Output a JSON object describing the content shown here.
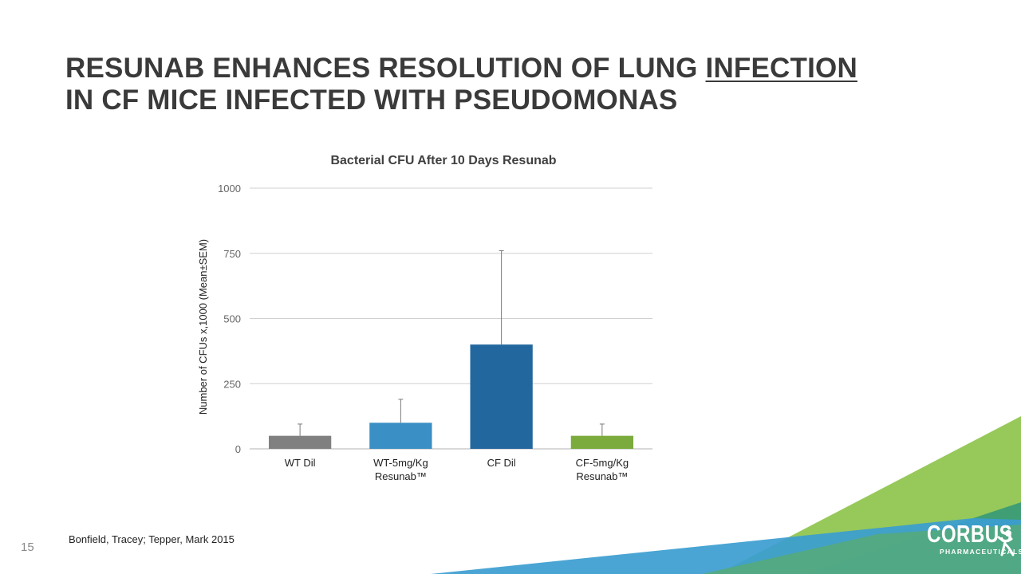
{
  "slide": {
    "title_line1_pre": "RESUNAB ENHANCES RESOLUTION OF LUNG ",
    "title_line1_underlined": "INFECTION",
    "title_line2": "IN CF MICE INFECTED WITH PSEUDOMONAS",
    "citation": "Bonfield, Tracey; Tepper, Mark 2015",
    "page_number": "15"
  },
  "logo": {
    "word": "CORBUS",
    "sub": "PHARMACEUTICALS"
  },
  "chart_data": {
    "type": "bar",
    "title": "Bacterial CFU After 10 Days Resunab",
    "ylabel": "Number of CFUs x,1000  (Mean±SEM)",
    "xlabel": "",
    "ylim": [
      0,
      1000
    ],
    "yticks": [
      0,
      250,
      500,
      750,
      1000
    ],
    "grid": true,
    "categories": [
      [
        "WT Dil"
      ],
      [
        "WT-5mg/Kg",
        "Resunab™"
      ],
      [
        "CF Dil"
      ],
      [
        "CF-5mg/Kg",
        "Resunab™"
      ]
    ],
    "values": [
      50,
      100,
      400,
      50
    ],
    "errors": [
      45,
      90,
      360,
      45
    ],
    "colors": [
      "#808080",
      "#3a8fc4",
      "#23679f",
      "#7aab3c"
    ]
  }
}
